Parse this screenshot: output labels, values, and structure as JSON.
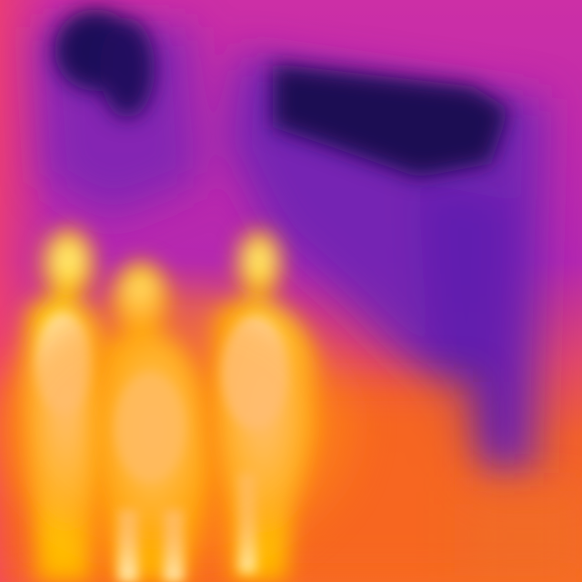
{
  "image": {
    "kind": "thermal-infrared-photo",
    "palette": "ironbow",
    "subjects": [
      "person",
      "person",
      "person"
    ],
    "colors": {
      "hot": "#fffde0",
      "warm": "#ffe100",
      "mid": "#ff9a1a",
      "cool": "#f05a28",
      "cooler": "#d2309a",
      "cold": "#6b1fb0",
      "coldest": "#150840"
    }
  }
}
